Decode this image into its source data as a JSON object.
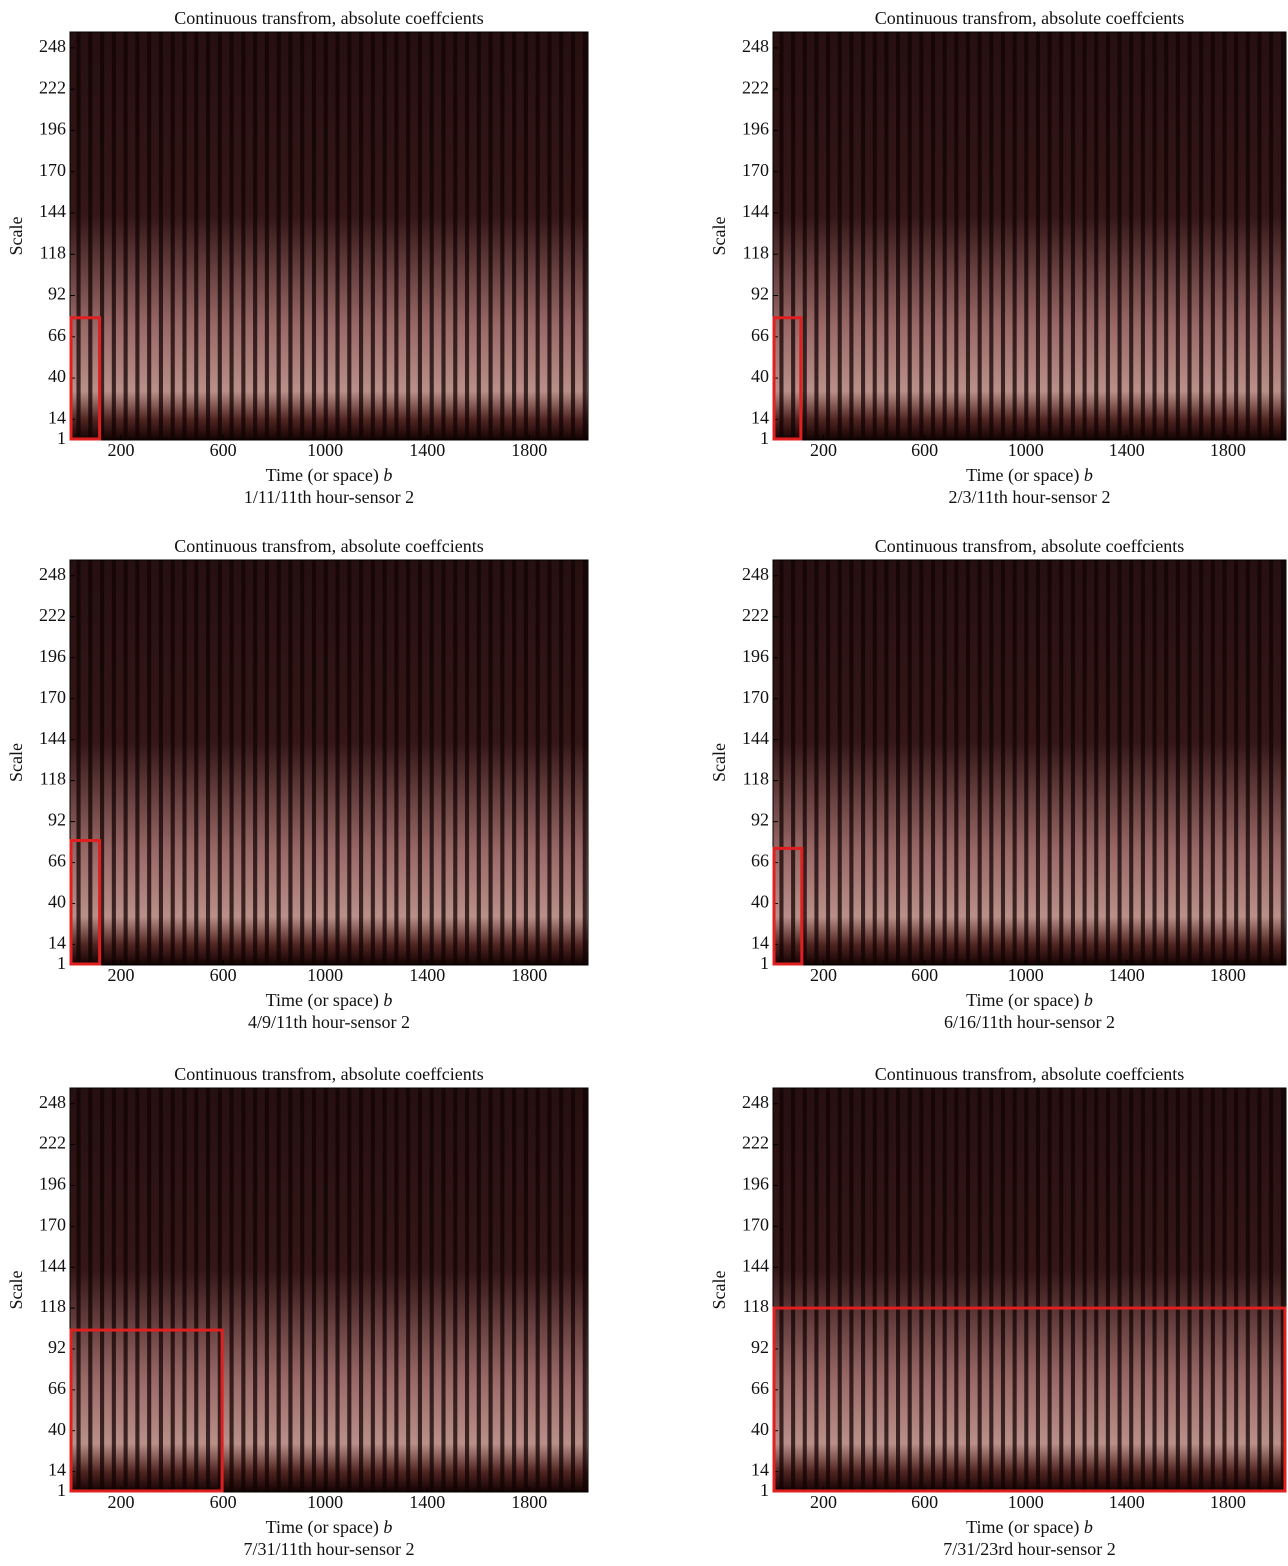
{
  "chart_data": [
    {
      "type": "heatmap",
      "title": "Continuous transfrom, absolute coeffcients",
      "xlabel": "Time (or space)",
      "xlabel_var": "b",
      "ylabel": "Scale",
      "caption": "1/11/11th hour-sensor 2",
      "xlim": [
        0,
        2030
      ],
      "ylim": [
        1,
        258
      ],
      "xticks": [
        200,
        600,
        1000,
        1400,
        1800
      ],
      "yticks": [
        1,
        14,
        40,
        66,
        92,
        118,
        144,
        170,
        196,
        222,
        248
      ],
      "highlight": {
        "x": [
          0,
          120
        ],
        "y": [
          1,
          78
        ],
        "color": "#e02020"
      }
    },
    {
      "type": "heatmap",
      "title": "Continuous transfrom, absolute coeffcients",
      "xlabel": "Time (or space)",
      "xlabel_var": "b",
      "ylabel": "Scale",
      "caption": "2/3/11th hour-sensor 2",
      "xlim": [
        0,
        2030
      ],
      "ylim": [
        1,
        258
      ],
      "xticks": [
        200,
        600,
        1000,
        1400,
        1800
      ],
      "yticks": [
        1,
        14,
        40,
        66,
        92,
        118,
        144,
        170,
        196,
        222,
        248
      ],
      "highlight": {
        "x": [
          0,
          114
        ],
        "y": [
          1,
          78
        ],
        "color": "#e02020"
      }
    },
    {
      "type": "heatmap",
      "title": "Continuous transfrom, absolute coeffcients",
      "xlabel": "Time (or space)",
      "xlabel_var": "b",
      "ylabel": "Scale",
      "caption": "4/9/11th hour-sensor 2",
      "xlim": [
        0,
        2030
      ],
      "ylim": [
        1,
        258
      ],
      "xticks": [
        200,
        600,
        1000,
        1400,
        1800
      ],
      "yticks": [
        1,
        14,
        40,
        66,
        92,
        118,
        144,
        170,
        196,
        222,
        248
      ],
      "highlight": {
        "x": [
          0,
          120
        ],
        "y": [
          1,
          80
        ],
        "color": "#e02020"
      }
    },
    {
      "type": "heatmap",
      "title": "Continuous transfrom, absolute coeffcients",
      "xlabel": "Time (or space)",
      "xlabel_var": "b",
      "ylabel": "Scale",
      "caption": "6/16/11th hour-sensor 2",
      "xlim": [
        0,
        2030
      ],
      "ylim": [
        1,
        258
      ],
      "xticks": [
        200,
        600,
        1000,
        1400,
        1800
      ],
      "yticks": [
        1,
        14,
        40,
        66,
        92,
        118,
        144,
        170,
        196,
        222,
        248
      ],
      "highlight": {
        "x": [
          0,
          118
        ],
        "y": [
          1,
          75
        ],
        "color": "#e02020"
      }
    },
    {
      "type": "heatmap",
      "title": "Continuous transfrom, absolute coeffcients",
      "xlabel": "Time (or space)",
      "xlabel_var": "b",
      "ylabel": "Scale",
      "caption": "7/31/11th hour-sensor 2",
      "xlim": [
        0,
        2030
      ],
      "ylim": [
        1,
        258
      ],
      "xticks": [
        200,
        600,
        1000,
        1400,
        1800
      ],
      "yticks": [
        1,
        14,
        40,
        66,
        92,
        118,
        144,
        170,
        196,
        222,
        248
      ],
      "highlight": {
        "x": [
          0,
          600
        ],
        "y": [
          1,
          104
        ],
        "color": "#e02020"
      }
    },
    {
      "type": "heatmap",
      "title": "Continuous transfrom, absolute coeffcients",
      "xlabel": "Time (or space)",
      "xlabel_var": "b",
      "ylabel": "Scale",
      "caption": "7/31/23rd hour-sensor 2",
      "xlim": [
        0,
        2030
      ],
      "ylim": [
        1,
        258
      ],
      "xticks": [
        200,
        600,
        1000,
        1400,
        1800
      ],
      "yticks": [
        1,
        14,
        40,
        66,
        92,
        118,
        144,
        170,
        196,
        222,
        248
      ],
      "highlight": {
        "x": [
          0,
          2030
        ],
        "y": [
          1,
          118
        ],
        "color": "#e02020"
      }
    }
  ]
}
